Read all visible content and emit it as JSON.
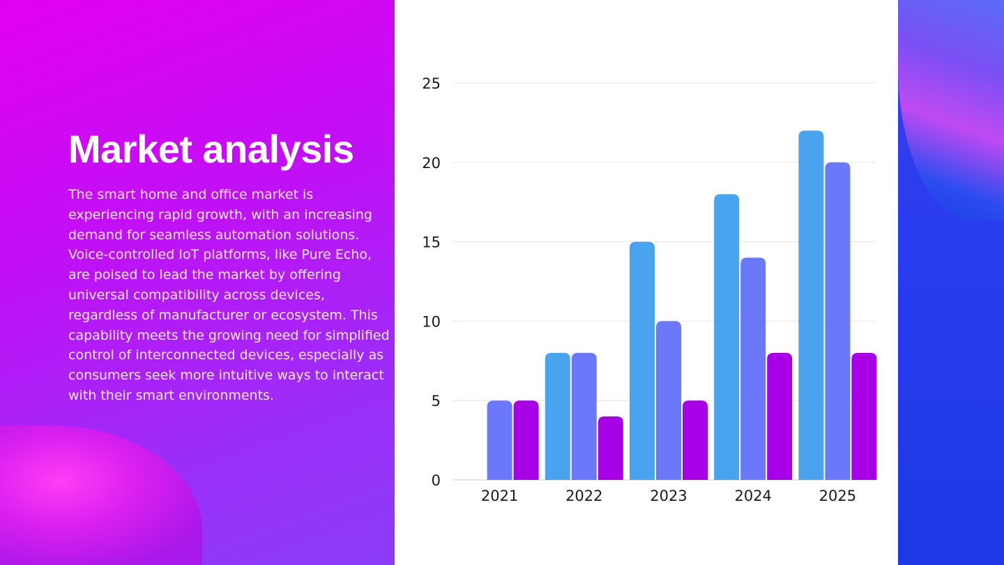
{
  "slide": {
    "title": "Market analysis",
    "body": "The smart home and office market is experiencing rapid growth, with an increasing demand for seamless automation solutions. Voice-controlled IoT platforms, like Pure Echo, are poised to lead the market by offering universal compatibility across devices, regardless of manufacturer or ecosystem. This capability meets the growing need for simplified control of interconnected devices, especially as consumers seek more intuitive ways to interact with their smart environments."
  },
  "chart_data": {
    "type": "bar",
    "title": "",
    "xlabel": "",
    "ylabel": "",
    "categories": [
      "2021",
      "2022",
      "2023",
      "2024",
      "2025"
    ],
    "series": [
      {
        "name": "Series 1",
        "color": "#4aa3ef",
        "values": [
          0,
          8,
          15,
          18,
          22
        ]
      },
      {
        "name": "Series 2",
        "color": "#6b78fa",
        "values": [
          5,
          8,
          10,
          14,
          20
        ]
      },
      {
        "name": "Series 3",
        "color": "#a800e6",
        "values": [
          5,
          4,
          5,
          8,
          8
        ]
      }
    ],
    "ylim": [
      0,
      25
    ],
    "yticks": [
      0,
      5,
      10,
      15,
      20,
      25
    ],
    "grid": true,
    "legend": "none"
  }
}
